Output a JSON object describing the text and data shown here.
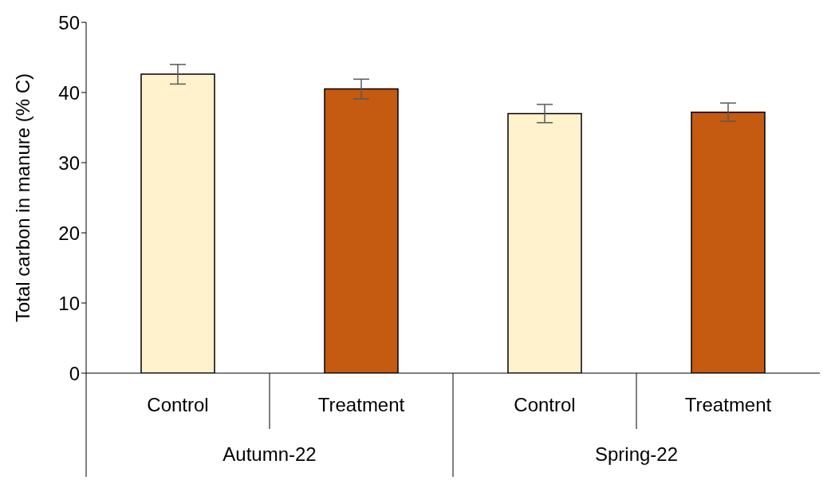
{
  "chart_data": {
    "type": "bar",
    "ylabel": "Total carbon in manure (% C)",
    "categories": [
      "Control",
      "Treatment",
      "Control",
      "Treatment"
    ],
    "values": [
      42.6,
      40.5,
      37.0,
      37.2
    ],
    "errors": [
      1.4,
      1.4,
      1.3,
      1.3
    ],
    "colors": [
      "#fff2cc",
      "#c55a11",
      "#fff2cc",
      "#c55a11"
    ],
    "ylim": [
      0,
      50
    ],
    "yticks": [
      0,
      10,
      20,
      30,
      40,
      50
    ],
    "grid": false,
    "annotations": [
      "Autumn-22",
      "Spring-22"
    ]
  }
}
